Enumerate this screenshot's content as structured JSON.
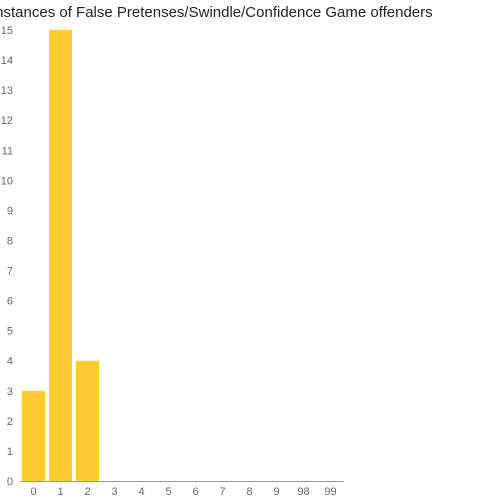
{
  "chart_data": {
    "type": "bar",
    "title": "Instances of False Pretenses/Swindle/Confidence Game offenders",
    "xlabel": "",
    "ylabel": "",
    "categories": [
      "0",
      "1",
      "2",
      "3",
      "4",
      "5",
      "6",
      "7",
      "8",
      "9",
      "98",
      "99"
    ],
    "values": [
      3,
      15,
      4,
      0,
      0,
      0,
      0,
      0,
      0,
      0,
      0,
      0
    ],
    "ylim": [
      0,
      15
    ],
    "yticks": [
      0,
      1,
      2,
      3,
      4,
      5,
      6,
      7,
      8,
      9,
      10,
      11,
      12,
      13,
      14,
      15
    ],
    "bar_color": "#ffcb30",
    "grid": false,
    "legend": "none"
  }
}
